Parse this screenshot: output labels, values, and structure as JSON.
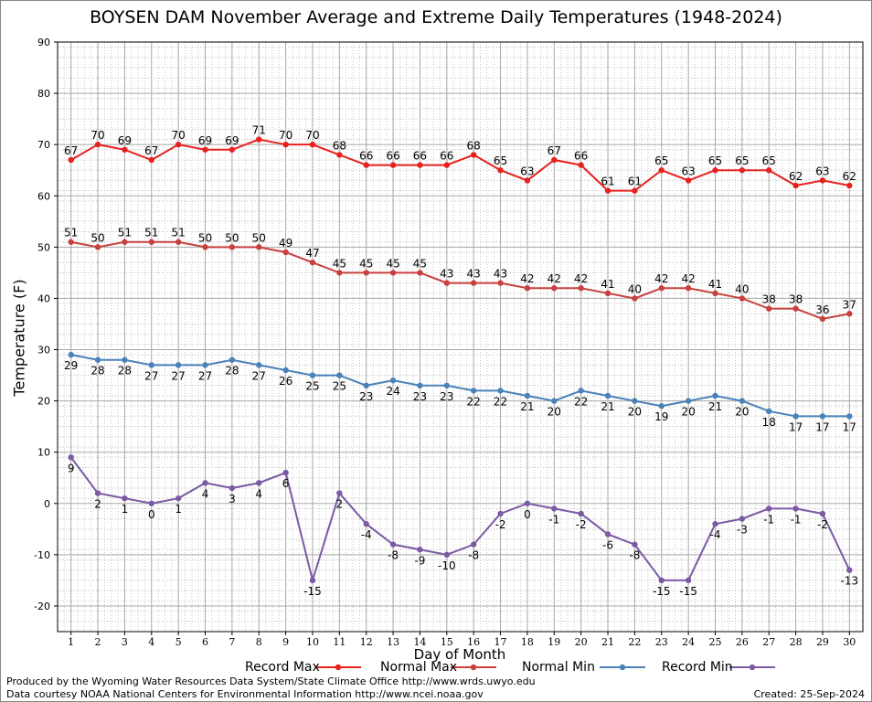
{
  "page": {
    "title": "BOYSEN DAM November Average and Extreme Daily Temperatures (1948-2024)",
    "footer_line1": "Produced by the Wyoming Water Resources Data System/State Climate Office http://www.wrds.uwyo.edu",
    "footer_line2": "Data courtesy NOAA National Centers for Environmental Information http://www.ncei.noaa.gov",
    "created": "Created: 25-Sep-2024"
  },
  "chart_data": {
    "type": "line",
    "title": "BOYSEN DAM November Average and Extreme Daily Temperatures (1948-2024)",
    "xlabel": "Day of Month",
    "ylabel": "Temperature (F)",
    "x": [
      1,
      2,
      3,
      4,
      5,
      6,
      7,
      8,
      9,
      10,
      11,
      12,
      13,
      14,
      15,
      16,
      17,
      18,
      19,
      20,
      21,
      22,
      23,
      24,
      25,
      26,
      27,
      28,
      29,
      30
    ],
    "xlim": [
      0.5,
      30.5
    ],
    "ylim": [
      -25,
      90
    ],
    "yticks": [
      -20,
      -10,
      0,
      10,
      20,
      30,
      40,
      50,
      60,
      70,
      80,
      90
    ],
    "grid": true,
    "legend_position": "bottom",
    "series": [
      {
        "name": "Record Max",
        "color": "#e8211f",
        "label_side": "above",
        "values": [
          67,
          70,
          69,
          67,
          70,
          69,
          69,
          71,
          70,
          70,
          68,
          66,
          66,
          66,
          66,
          68,
          65,
          63,
          67,
          66,
          61,
          61,
          65,
          63,
          65,
          65,
          65,
          62,
          63,
          62
        ]
      },
      {
        "name": "Normal Max",
        "color": "#c8403f",
        "label_side": "above",
        "values": [
          51,
          50,
          51,
          51,
          51,
          50,
          50,
          50,
          49,
          47,
          45,
          45,
          45,
          45,
          43,
          43,
          43,
          42,
          42,
          42,
          41,
          40,
          42,
          42,
          41,
          40,
          38,
          38,
          36,
          37
        ]
      },
      {
        "name": "Normal Min",
        "color": "#4a82b8",
        "label_side": "below",
        "values": [
          29,
          28,
          28,
          27,
          27,
          27,
          28,
          27,
          26,
          25,
          25,
          23,
          24,
          23,
          23,
          22,
          22,
          21,
          20,
          22,
          21,
          20,
          19,
          20,
          21,
          20,
          18,
          17,
          17,
          17
        ]
      },
      {
        "name": "Record Min",
        "color": "#7b5aa3",
        "label_side": "below",
        "values": [
          9,
          2,
          1,
          0,
          1,
          4,
          3,
          4,
          6,
          -15,
          2,
          -4,
          -8,
          -9,
          -10,
          -8,
          -2,
          0,
          -1,
          -2,
          -6,
          -8,
          -15,
          -15,
          -4,
          -3,
          -1,
          -1,
          -2,
          -13
        ]
      }
    ]
  }
}
